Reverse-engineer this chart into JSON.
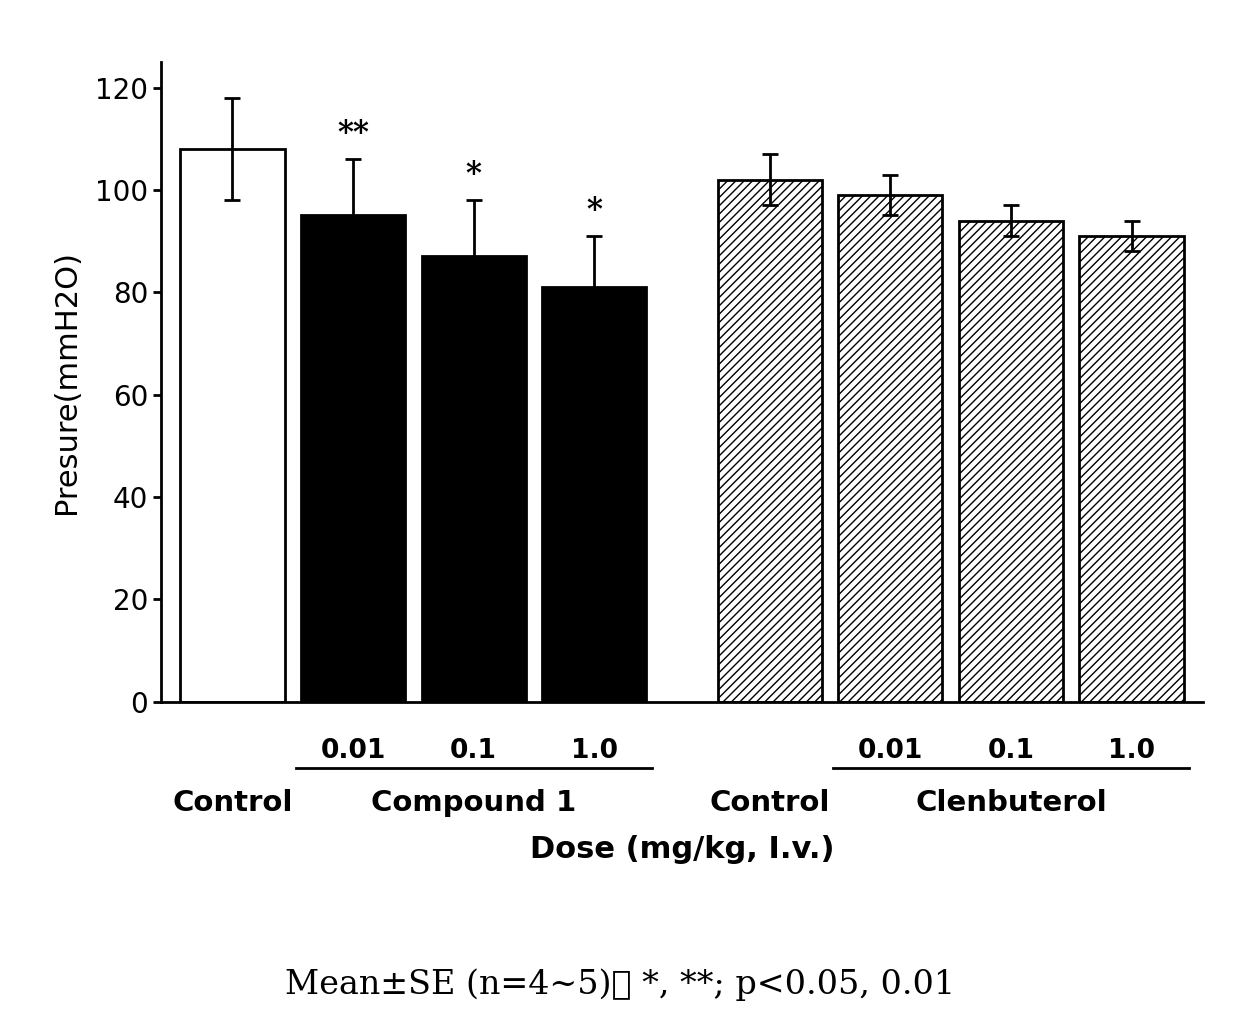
{
  "bars": [
    {
      "label": "Control",
      "value": 108,
      "error": 10,
      "facecolor": "white",
      "hatch": null,
      "sig": null
    },
    {
      "label": "0.01",
      "value": 95,
      "error": 11,
      "facecolor": "black",
      "hatch": null,
      "sig": "**"
    },
    {
      "label": "0.1",
      "value": 87,
      "error": 11,
      "facecolor": "black",
      "hatch": null,
      "sig": "*"
    },
    {
      "label": "1.0",
      "value": 81,
      "error": 10,
      "facecolor": "black",
      "hatch": null,
      "sig": "*"
    },
    {
      "label": "Control",
      "value": 102,
      "error": 5,
      "facecolor": "white",
      "hatch": "////",
      "sig": null
    },
    {
      "label": "0.01",
      "value": 99,
      "error": 4,
      "facecolor": "white",
      "hatch": "////",
      "sig": null
    },
    {
      "label": "0.1",
      "value": 94,
      "error": 3,
      "facecolor": "white",
      "hatch": "////",
      "sig": null
    },
    {
      "label": "1.0",
      "value": 91,
      "error": 3,
      "facecolor": "white",
      "hatch": "////",
      "sig": null
    }
  ],
  "positions": [
    0,
    1.1,
    2.2,
    3.3,
    4.9,
    6.0,
    7.1,
    8.2
  ],
  "bar_width": 0.95,
  "ylabel": "Presure(mmH2O)",
  "ylim": [
    0,
    125
  ],
  "yticks": [
    0,
    20,
    40,
    60,
    80,
    100,
    120
  ],
  "xlabel": "Dose (mg/kg, I.v.)",
  "dose_labels_compound": [
    "0.01",
    "0.1",
    "1.0"
  ],
  "dose_labels_clenbuterol": [
    "0.01",
    "0.1",
    "1.0"
  ],
  "group_label_compound": "Compound 1",
  "group_label_clenbuterol": "Clenbuterol",
  "control_label": "Control",
  "footnote": "Mean±SE (n=4~5)、 *, **; p<0.05, 0.01"
}
